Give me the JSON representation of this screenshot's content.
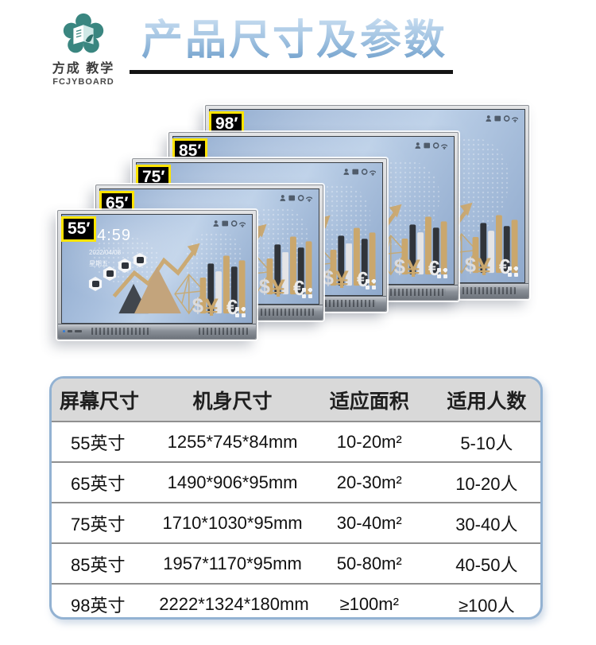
{
  "header": {
    "logo": {
      "brand_cn": "方成 教学",
      "brand_en": "FCJYBOARD"
    },
    "title": "产品尺寸及参数"
  },
  "displays": [
    {
      "id": "98",
      "label": "98′"
    },
    {
      "id": "85",
      "label": "85′"
    },
    {
      "id": "75",
      "label": "75′"
    },
    {
      "id": "65",
      "label": "65′"
    },
    {
      "id": "55",
      "label": "55′"
    }
  ],
  "screen55": {
    "time": "14:59",
    "date": "2022/04/08",
    "weekday": "星期五"
  },
  "icons": [
    "user-icon",
    "gallery-icon",
    "record-icon",
    "wifi-icon",
    "apps-grid-icon"
  ],
  "colors": {
    "brand_teal": "#3a8680",
    "title_blue": "#6b9cc9",
    "tag_yellow": "#ffe400",
    "table_border": "#93b2d2",
    "table_header_bg": "#d9d9d9",
    "screen_blue": "#a9c0de",
    "chart_gold": "#c9a96e"
  },
  "table": {
    "headers": [
      "屏幕尺寸",
      "机身尺寸",
      "适应面积",
      "适用人数"
    ],
    "rows": [
      {
        "screen": "55英寸",
        "body": "1255*745*84mm",
        "area": "10-20m²",
        "people": "5-10人"
      },
      {
        "screen": "65英寸",
        "body": "1490*906*95mm",
        "area": "20-30m²",
        "people": "10-20人"
      },
      {
        "screen": "75英寸",
        "body": "1710*1030*95mm",
        "area": "30-40m²",
        "people": "30-40人"
      },
      {
        "screen": "85英寸",
        "body": "1957*1170*95mm",
        "area": "50-80m²",
        "people": "40-50人"
      },
      {
        "screen": "98英寸",
        "body": "2222*1324*180mm",
        "area": "≥100m²",
        "people": "≥100人"
      }
    ]
  }
}
